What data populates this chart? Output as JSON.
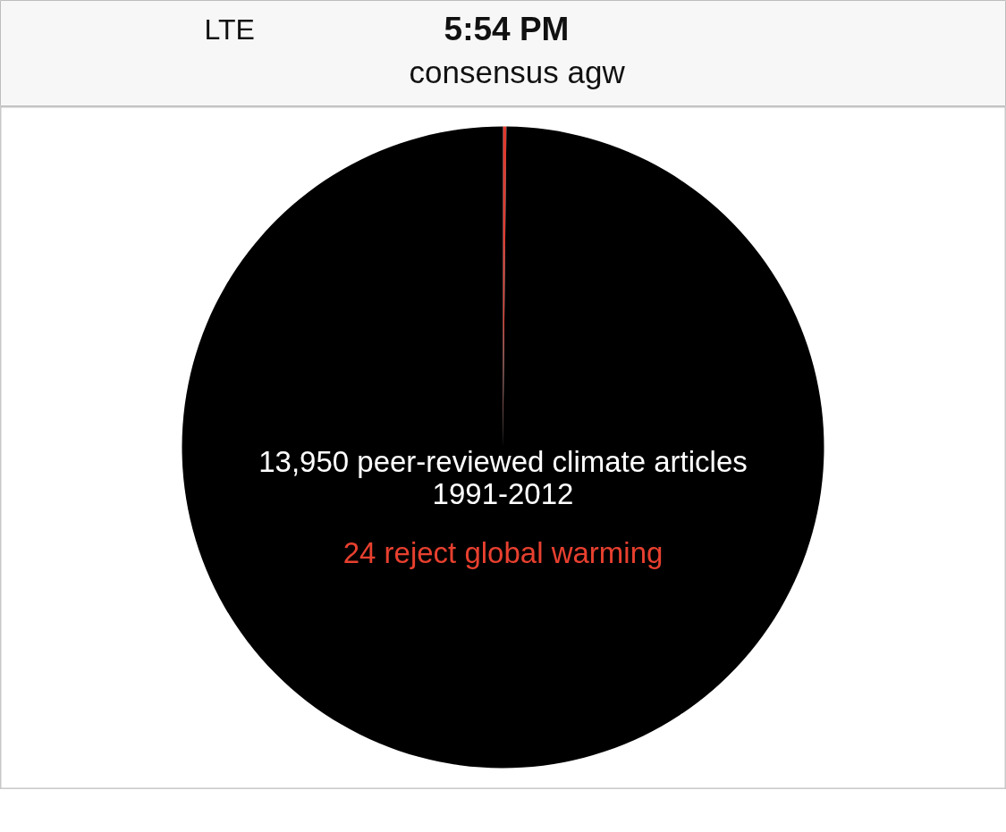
{
  "chart_data": {
    "type": "pie",
    "title": "13,950 peer-reviewed climate articles\n1991-2012",
    "subtitle": "24 reject global warming",
    "categories": [
      null,
      null
    ],
    "values": [
      0.17,
      99.83
    ],
    "colors": [
      "#e03a2e",
      "#000000"
    ],
    "annotations": [
      "LTE",
      "5:54 PM",
      "consensus agw"
    ]
  }
}
